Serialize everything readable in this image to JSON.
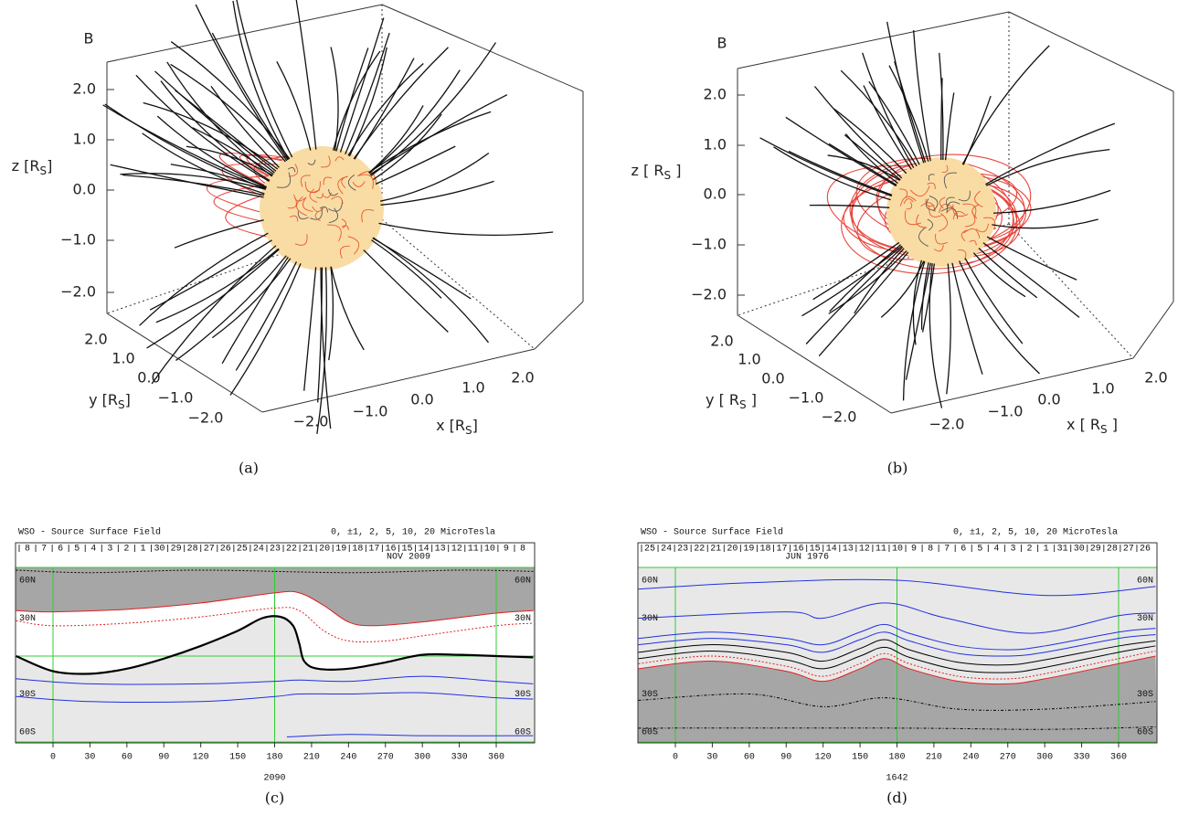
{
  "panels": [
    {
      "caption": "(a)",
      "title": "B",
      "z_ticks": [
        "2.0",
        "1.0",
        "0.0",
        "−1.0",
        "−2.0"
      ],
      "y_ticks": [
        "2.0",
        "1.0",
        "0.0",
        "−1.0",
        "−2.0"
      ],
      "x_ticks": [
        "−2.0",
        "−1.0",
        "0.0",
        "1.0",
        "2.0"
      ],
      "z_label": {
        "prefix": "z [R",
        "sub": "S",
        "suffix": "]"
      },
      "y_label": {
        "prefix": "y [R",
        "sub": "S",
        "suffix": "]"
      },
      "x_label": {
        "prefix": "x [R",
        "sub": "S",
        "suffix": "]"
      }
    },
    {
      "caption": "(b)",
      "title": "B",
      "z_ticks": [
        "2.0",
        "1.0",
        "0.0",
        "−1.0",
        "−2.0"
      ],
      "y_ticks": [
        "2.0",
        "1.0",
        "0.0",
        "−1.0",
        "−2.0"
      ],
      "x_ticks": [
        "−2.0",
        "−1.0",
        "0.0",
        "1.0",
        "2.0"
      ],
      "z_label": {
        "prefix": "z [ R",
        "sub": "S",
        "suffix": " ]"
      },
      "y_label": {
        "prefix": "y [ R",
        "sub": "S",
        "suffix": " ]"
      },
      "x_label": {
        "prefix": "x [ R",
        "sub": "S",
        "suffix": " ]"
      }
    }
  ],
  "maps": [
    {
      "caption": "(c)",
      "title": "WSO - Source Surface Field",
      "levels": "0, ±1, 2, 5, 10, 20 MicroTesla",
      "month": "NOV 2009",
      "days": [
        "8",
        "7",
        "6",
        "5",
        "4",
        "3",
        "2",
        "1",
        "30",
        "29",
        "28",
        "27",
        "26",
        "25",
        "24",
        "23",
        "22",
        "21",
        "20",
        "19",
        "18",
        "17",
        "16",
        "15",
        "14",
        "13",
        "12",
        "11",
        "10",
        "9",
        "8"
      ],
      "lat_labels": [
        "60N",
        "30N",
        "30S",
        "60S"
      ],
      "x_ticks": [
        "0",
        "30",
        "60",
        "90",
        "120",
        "150",
        "180",
        "210",
        "240",
        "270",
        "300",
        "330",
        "360"
      ],
      "rotation": "2090"
    },
    {
      "caption": "(d)",
      "title": "WSO - Source Surface Field",
      "levels": "0, ±1, 2, 5, 10, 20 MicroTesla",
      "month": "JUN 1976",
      "days": [
        "25",
        "24",
        "23",
        "22",
        "21",
        "20",
        "19",
        "18",
        "17",
        "16",
        "15",
        "14",
        "13",
        "12",
        "11",
        "10",
        "9",
        "8",
        "7",
        "6",
        "5",
        "4",
        "3",
        "2",
        "1",
        "31",
        "30",
        "29",
        "28",
        "27",
        "26"
      ],
      "lat_labels": [
        "60N",
        "30N",
        "30S",
        "60S"
      ],
      "x_ticks": [
        "0",
        "30",
        "60",
        "90",
        "120",
        "150",
        "180",
        "210",
        "240",
        "270",
        "300",
        "330",
        "360"
      ],
      "rotation": "1642"
    }
  ]
}
